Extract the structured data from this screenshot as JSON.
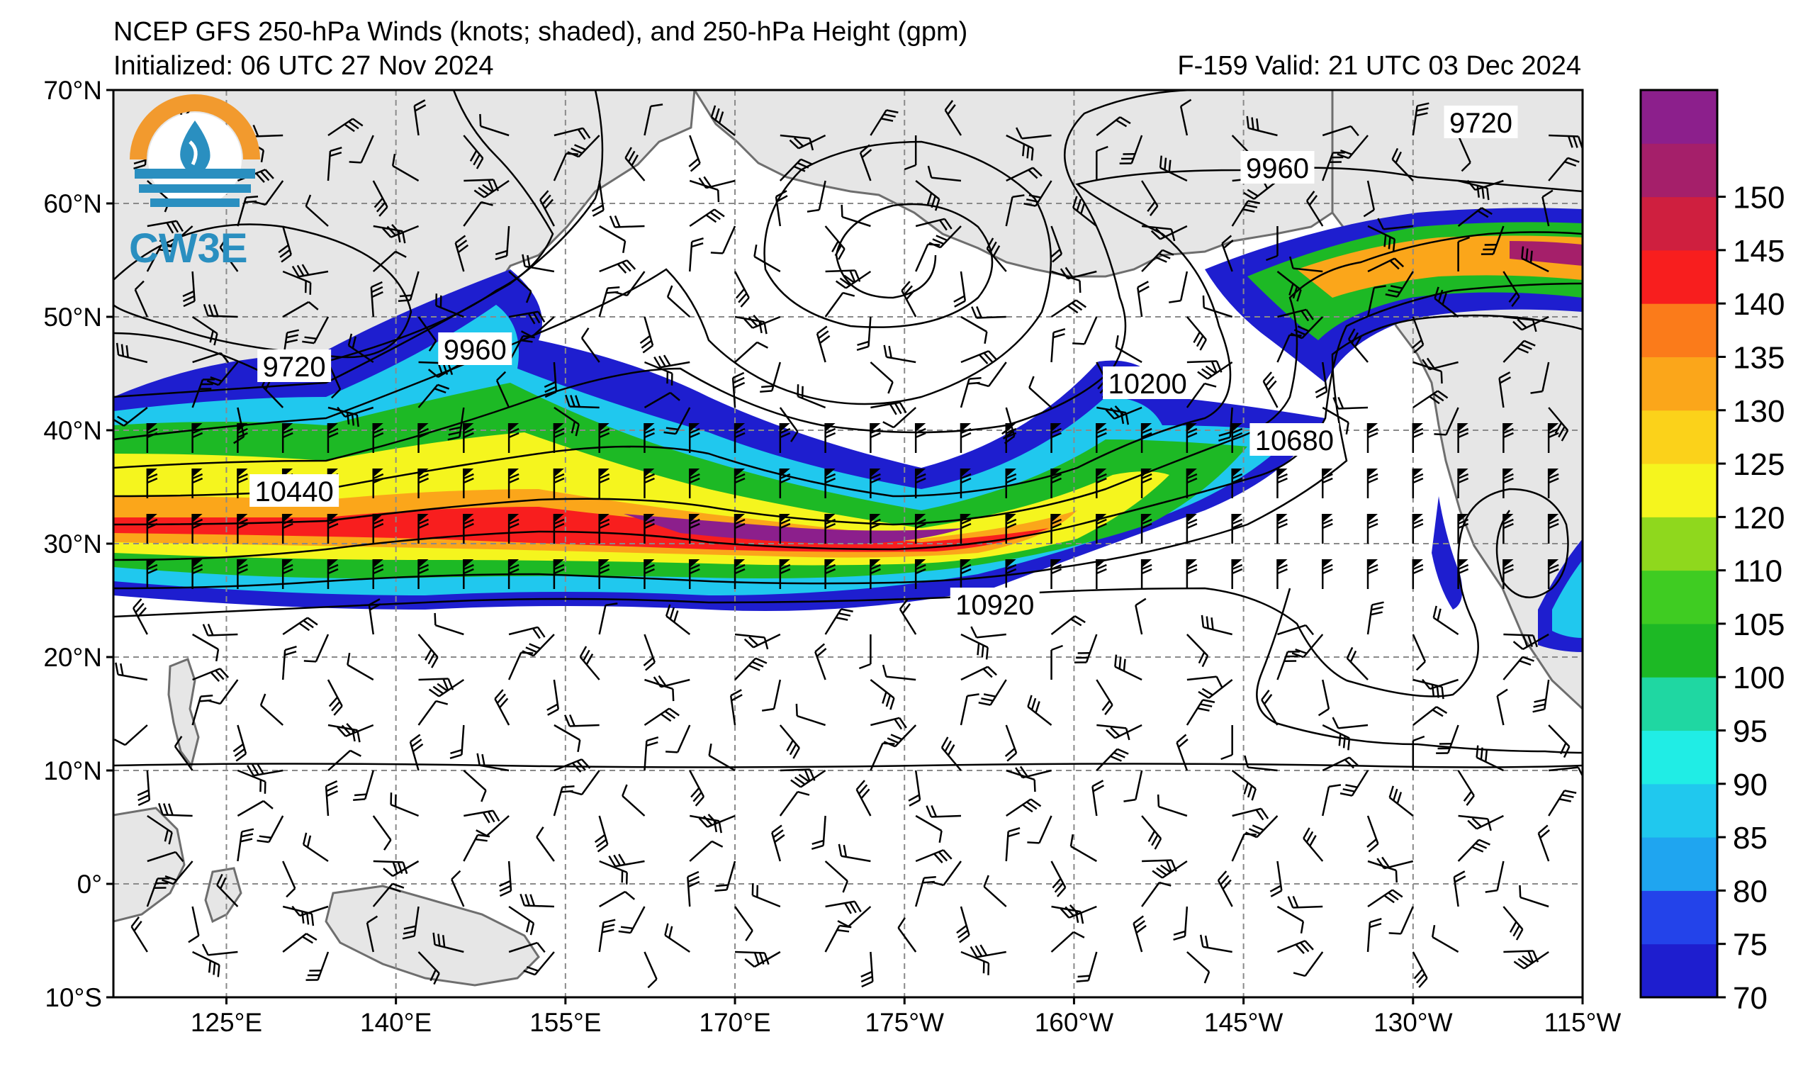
{
  "header": {
    "title": "NCEP GFS 250-hPa Winds (knots; shaded), and 250-hPa Height (gpm)",
    "initialized": "Initialized: 06 UTC 27 Nov 2024",
    "valid": "F-159  Valid: 21 UTC 03 Dec 2024"
  },
  "logo": {
    "text": "CW3E",
    "colors": {
      "ring": "#f29a2e",
      "band": "#2a8fc0",
      "drop": "#2a8fc0"
    }
  },
  "map": {
    "lon_ticks": [
      "125°E",
      "140°E",
      "155°E",
      "170°E",
      "175°W",
      "160°W",
      "145°W",
      "130°W",
      "115°W"
    ],
    "lat_ticks": [
      "70°N",
      "60°N",
      "50°N",
      "40°N",
      "30°N",
      "20°N",
      "10°N",
      "0°",
      "10°S"
    ],
    "lon_range_deg_east": [
      115,
      245
    ],
    "lat_range": [
      -10,
      70
    ],
    "gridlines": "dashed",
    "land_color": "#e6e6e6",
    "coast_color": "#6e6e6e"
  },
  "height_contour_labels": [
    {
      "text": "9720",
      "lon": 131,
      "lat": 45.5
    },
    {
      "text": "9960",
      "lon": 147,
      "lat": 47
    },
    {
      "text": "10440",
      "lon": 131,
      "lat": 34.5
    },
    {
      "text": "10200",
      "lon": 206.5,
      "lat": 44
    },
    {
      "text": "10680",
      "lon": 219.5,
      "lat": 39
    },
    {
      "text": "10920",
      "lon": 193,
      "lat": 24.5
    },
    {
      "text": "9960",
      "lon": 218,
      "lat": 63
    },
    {
      "text": "9720",
      "lon": 236,
      "lat": 67
    }
  ],
  "colorbar": {
    "ticks": [
      "70",
      "75",
      "80",
      "85",
      "90",
      "95",
      "100",
      "105",
      "110",
      "120",
      "125",
      "130",
      "135",
      "140",
      "145",
      "150"
    ],
    "colors": [
      "#1e1ecf",
      "#2343ea",
      "#1fa5f0",
      "#20c8ee",
      "#20ede5",
      "#1fd7a2",
      "#1db925",
      "#3fcc22",
      "#8fd81d",
      "#f5f51e",
      "#fbd21a",
      "#fba61a",
      "#fb7b1a",
      "#f81e1e",
      "#cf1f3f",
      "#a51f6a",
      "#8c1f8c"
    ]
  }
}
